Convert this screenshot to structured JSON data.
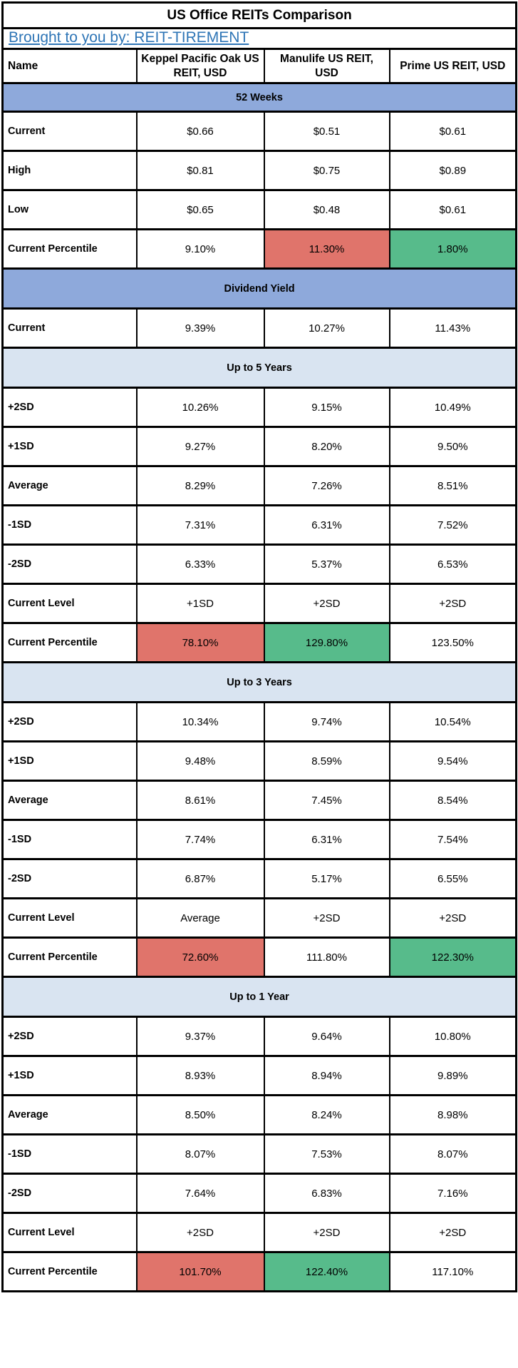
{
  "title": "US Office REITs Comparison",
  "byline": {
    "text": "Brought to you by: REIT-TIREMENT"
  },
  "colors": {
    "band-dark": "#8EA9DB",
    "band-light": "#D9E4F1",
    "bad": "#E0746B",
    "good": "#57BB8B",
    "link": "#2E75B6"
  },
  "chart_data": {
    "type": "table",
    "columns": [
      "Name",
      "Keppel Pacific Oak US REIT, USD",
      "Manulife US REIT, USD",
      "Prime US REIT, USD"
    ],
    "highlight_legend": {
      "bad": "red",
      "good": "green"
    },
    "sections": [
      {
        "header": "52 Weeks",
        "style": "dark",
        "rows": [
          {
            "label": "Current",
            "values": [
              "$0.66",
              "$0.51",
              "$0.61"
            ]
          },
          {
            "label": "High",
            "values": [
              "$0.81",
              "$0.75",
              "$0.89"
            ]
          },
          {
            "label": "Low",
            "values": [
              "$0.65",
              "$0.48",
              "$0.61"
            ]
          },
          {
            "label": "Current Percentile",
            "values": [
              "9.10%",
              "11.30%",
              "1.80%"
            ],
            "highlight": [
              null,
              "bad",
              "good"
            ]
          }
        ]
      },
      {
        "header": "Dividend Yield",
        "style": "dark",
        "rows": [
          {
            "label": "Current",
            "values": [
              "9.39%",
              "10.27%",
              "11.43%"
            ]
          }
        ]
      },
      {
        "header": "Up to 5 Years",
        "style": "light",
        "rows": [
          {
            "label": "+2SD",
            "values": [
              "10.26%",
              "9.15%",
              "10.49%"
            ]
          },
          {
            "label": "+1SD",
            "values": [
              "9.27%",
              "8.20%",
              "9.50%"
            ]
          },
          {
            "label": "Average",
            "values": [
              "8.29%",
              "7.26%",
              "8.51%"
            ]
          },
          {
            "label": "-1SD",
            "values": [
              "7.31%",
              "6.31%",
              "7.52%"
            ]
          },
          {
            "label": "-2SD",
            "values": [
              "6.33%",
              "5.37%",
              "6.53%"
            ]
          },
          {
            "label": "Current Level",
            "values": [
              "+1SD",
              "+2SD",
              "+2SD"
            ]
          },
          {
            "label": "Current Percentile",
            "values": [
              "78.10%",
              "129.80%",
              "123.50%"
            ],
            "highlight": [
              "bad",
              "good",
              null
            ]
          }
        ]
      },
      {
        "header": "Up to 3 Years",
        "style": "light",
        "rows": [
          {
            "label": "+2SD",
            "values": [
              "10.34%",
              "9.74%",
              "10.54%"
            ]
          },
          {
            "label": "+1SD",
            "values": [
              "9.48%",
              "8.59%",
              "9.54%"
            ]
          },
          {
            "label": "Average",
            "values": [
              "8.61%",
              "7.45%",
              "8.54%"
            ]
          },
          {
            "label": "-1SD",
            "values": [
              "7.74%",
              "6.31%",
              "7.54%"
            ]
          },
          {
            "label": "-2SD",
            "values": [
              "6.87%",
              "5.17%",
              "6.55%"
            ]
          },
          {
            "label": "Current Level",
            "values": [
              "Average",
              "+2SD",
              "+2SD"
            ]
          },
          {
            "label": "Current Percentile",
            "values": [
              "72.60%",
              "111.80%",
              "122.30%"
            ],
            "highlight": [
              "bad",
              null,
              "good"
            ]
          }
        ]
      },
      {
        "header": "Up to 1 Year",
        "style": "light",
        "rows": [
          {
            "label": "+2SD",
            "values": [
              "9.37%",
              "9.64%",
              "10.80%"
            ]
          },
          {
            "label": "+1SD",
            "values": [
              "8.93%",
              "8.94%",
              "9.89%"
            ]
          },
          {
            "label": "Average",
            "values": [
              "8.50%",
              "8.24%",
              "8.98%"
            ]
          },
          {
            "label": "-1SD",
            "values": [
              "8.07%",
              "7.53%",
              "8.07%"
            ]
          },
          {
            "label": "-2SD",
            "values": [
              "7.64%",
              "6.83%",
              "7.16%"
            ]
          },
          {
            "label": "Current Level",
            "values": [
              "+2SD",
              "+2SD",
              "+2SD"
            ]
          },
          {
            "label": "Current Percentile",
            "values": [
              "101.70%",
              "122.40%",
              "117.10%"
            ],
            "highlight": [
              "bad",
              "good",
              null
            ]
          }
        ]
      }
    ]
  }
}
